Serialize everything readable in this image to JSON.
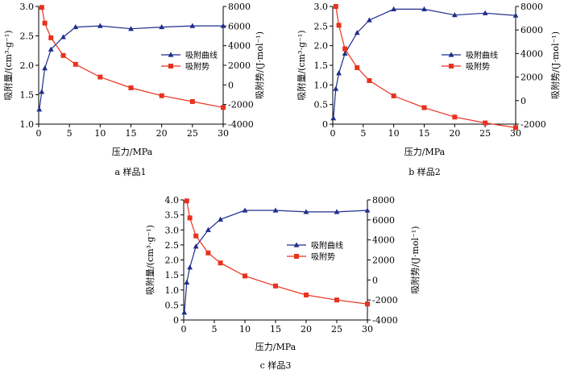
{
  "colors": {
    "adsorption": "#1f2d8a",
    "potential": "#e8321e",
    "axis": "#000000"
  },
  "chart_data": [
    {
      "type": "line",
      "caption": "a  样品1",
      "xlabel": "压力/MPa",
      "ylabel_left": "吸附量/(cm³·g⁻¹)",
      "ylabel_right": "吸附势/(J·mol⁻¹)",
      "xlim": [
        0,
        30
      ],
      "xticks": [
        0,
        5,
        10,
        15,
        20,
        25,
        30
      ],
      "ylim_left": [
        1.0,
        3.0
      ],
      "yticks_left": [
        "1.0",
        "1.5",
        "2.0",
        "2.5",
        "3.0"
      ],
      "ylim_right": [
        -4000,
        8000
      ],
      "yticks_right": [
        "-4000",
        "-2000",
        "0",
        "2000",
        "4000",
        "6000",
        "8000"
      ],
      "legend": [
        "吸附曲线",
        "吸附势"
      ],
      "series": [
        {
          "name": "吸附曲线",
          "axis": "left",
          "marker": "triangle",
          "x": [
            0.1,
            0.5,
            1,
            2,
            4,
            6,
            10,
            15,
            20,
            25,
            30
          ],
          "y": [
            1.25,
            1.55,
            1.95,
            2.27,
            2.48,
            2.65,
            2.67,
            2.62,
            2.65,
            2.67,
            2.67
          ]
        },
        {
          "name": "吸附势",
          "axis": "right",
          "marker": "square",
          "x": [
            0.5,
            1,
            2,
            4,
            6,
            10,
            15,
            20,
            25,
            30
          ],
          "y": [
            7900,
            6300,
            4800,
            3000,
            2100,
            800,
            -300,
            -1100,
            -1700,
            -2300
          ]
        }
      ]
    },
    {
      "type": "line",
      "caption": "b  样品2",
      "xlabel": "压力/MPa",
      "ylabel_left": "吸附量/(cm³·g⁻¹)",
      "ylabel_right": "吸附势/(J·mol⁻¹)",
      "xlim": [
        0,
        30
      ],
      "xticks": [
        0,
        5,
        10,
        15,
        20,
        25,
        30
      ],
      "ylim_left": [
        0,
        3.0
      ],
      "yticks_left": [
        "0",
        "0.5",
        "1.0",
        "1.5",
        "2.0",
        "2.5",
        "3.0"
      ],
      "ylim_right": [
        -2000,
        8000
      ],
      "yticks_right": [
        "-2000",
        "0",
        "2000",
        "4000",
        "6000",
        "8000"
      ],
      "legend": [
        "吸附曲线",
        "吸附势"
      ],
      "series": [
        {
          "name": "吸附曲线",
          "axis": "left",
          "marker": "triangle",
          "x": [
            0.1,
            0.5,
            1,
            2,
            4,
            6,
            10,
            15,
            20,
            25,
            30
          ],
          "y": [
            0.15,
            0.9,
            1.3,
            1.8,
            2.33,
            2.65,
            2.93,
            2.93,
            2.78,
            2.83,
            2.77
          ]
        },
        {
          "name": "吸附势",
          "axis": "right",
          "marker": "square",
          "x": [
            0.5,
            1,
            2,
            4,
            6,
            10,
            15,
            20,
            25,
            30
          ],
          "y": [
            8000,
            6400,
            4400,
            2800,
            1700,
            400,
            -600,
            -1400,
            -1900,
            -2300
          ]
        }
      ]
    },
    {
      "type": "line",
      "caption": "c  样品3",
      "xlabel": "压力/MPa",
      "ylabel_left": "吸附量/(cm³·g⁻¹)",
      "ylabel_right": "吸附势/(J·mol⁻¹)",
      "xlim": [
        0,
        30
      ],
      "xticks": [
        0,
        5,
        10,
        15,
        20,
        25,
        30
      ],
      "ylim_left": [
        0,
        4.0
      ],
      "yticks_left": [
        "0",
        "0.5",
        "1.0",
        "1.5",
        "2.0",
        "2.5",
        "3.0",
        "3.5",
        "4.0"
      ],
      "ylim_right": [
        -4000,
        8000
      ],
      "yticks_right": [
        "-4000",
        "-2000",
        "0",
        "2000",
        "4000",
        "6000",
        "8000"
      ],
      "legend": [
        "吸附曲线",
        "吸附势"
      ],
      "series": [
        {
          "name": "吸附曲线",
          "axis": "left",
          "marker": "triangle",
          "x": [
            0.1,
            0.5,
            1,
            2,
            4,
            6,
            10,
            15,
            20,
            25,
            30
          ],
          "y": [
            0.25,
            1.25,
            1.75,
            2.45,
            3.0,
            3.35,
            3.65,
            3.65,
            3.6,
            3.6,
            3.65
          ]
        },
        {
          "name": "吸附势",
          "axis": "right",
          "marker": "square",
          "x": [
            0.5,
            1,
            2,
            4,
            6,
            10,
            15,
            20,
            25,
            30
          ],
          "y": [
            7900,
            6200,
            4400,
            2700,
            1700,
            400,
            -600,
            -1500,
            -2000,
            -2400
          ]
        }
      ]
    }
  ]
}
